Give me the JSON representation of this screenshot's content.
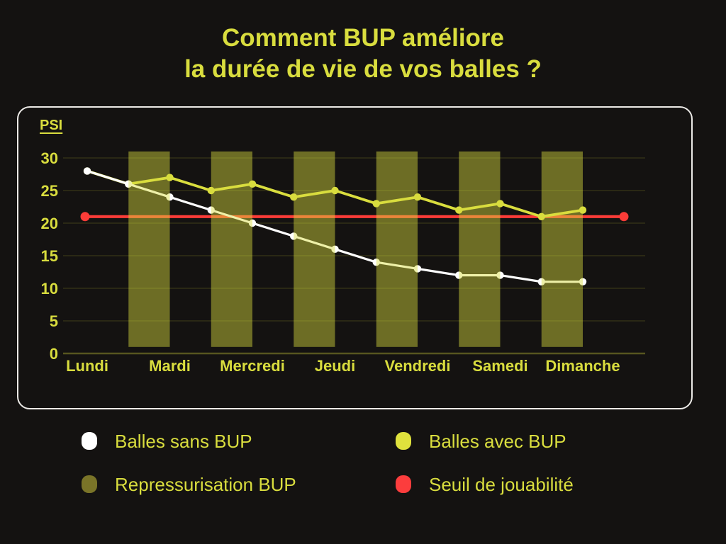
{
  "title": {
    "line1": "Comment BUP améliore",
    "line2": "la durée de vie de vos balles ?"
  },
  "chart_data": {
    "type": "line",
    "ylabel": "PSI",
    "categories": [
      "Lundi",
      "Mardi",
      "Mercredi",
      "Jeudi",
      "Vendredi",
      "Samedi",
      "Dimanche"
    ],
    "points_per_day": 2,
    "ylim": [
      0,
      30
    ],
    "yticks": [
      0,
      5,
      10,
      15,
      20,
      25,
      30
    ],
    "grid": true,
    "series": [
      {
        "name": "Balles sans BUP",
        "color": "#ffffff",
        "values": [
          28,
          26,
          24,
          22,
          20,
          18,
          16,
          14,
          13,
          12,
          12,
          11,
          11
        ]
      },
      {
        "name": "Balles avec BUP",
        "color": "#d9dd3e",
        "values": [
          28,
          26,
          27,
          25,
          26,
          24,
          25,
          23,
          24,
          22,
          23,
          21,
          22
        ]
      }
    ],
    "threshold": {
      "name": "Seuil de jouabilité",
      "value": 21,
      "color": "#fb3c38"
    },
    "repressurization_bars": {
      "name": "Repressurisation BUP",
      "fill": "#d9dd3e",
      "opacity": 0.45,
      "point_intervals": [
        [
          1,
          2
        ],
        [
          3,
          4
        ],
        [
          5,
          6
        ],
        [
          7,
          8
        ],
        [
          9,
          10
        ],
        [
          11,
          12
        ]
      ],
      "psi_from": 1,
      "psi_to": 31
    }
  },
  "legend": [
    {
      "label": "Balles sans BUP",
      "color": "#ffffff"
    },
    {
      "label": "Balles avec BUP",
      "color": "#dfe23d"
    },
    {
      "label": "Repressurisation BUP",
      "color": "#7a7428"
    },
    {
      "label": "Seuil de jouabilité",
      "color": "#fc3d3d"
    }
  ],
  "colors": {
    "background": "#141211",
    "accent_yellow": "#d9dd3e",
    "panel_border": "#eceae7"
  }
}
